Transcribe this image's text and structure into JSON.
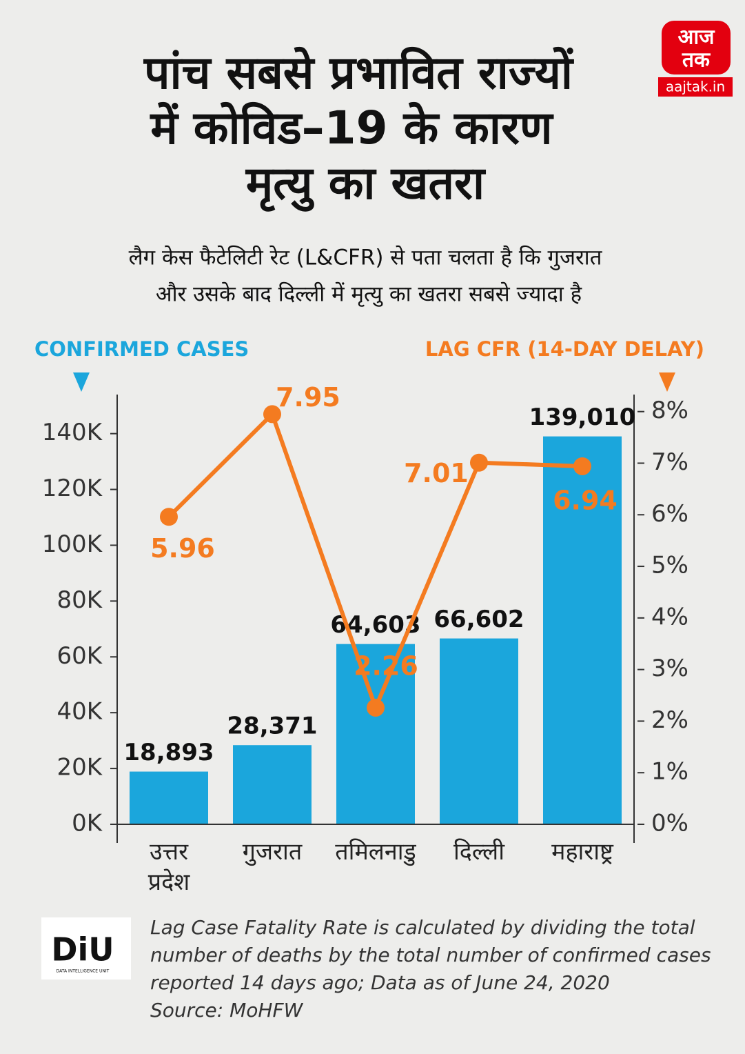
{
  "chart_data": {
    "type": "combo",
    "title": [
      "पांच सबसे प्रभावित राज्यों",
      "में कोविड–19 के कारण",
      "मृत्यु का खतरा"
    ],
    "subtitle": [
      "लैग केस फैटेलिटी रेट (L&CFR) से पता चलता है कि गुजरात",
      "और उसके बाद दिल्ली में मृत्यु का खतरा सबसे ज्यादा है"
    ],
    "ylabel": "CONFIRMED CASES",
    "y2label": "LAG CFR (14-DAY DELAY)",
    "categories": [
      "उत्तर प्रदेश",
      "गुजरात",
      "तमिलनाडु",
      "दिल्ली",
      "महाराष्ट्र"
    ],
    "series": [
      {
        "name": "CONFIRMED CASES",
        "color": "#1ba6dc",
        "values": [
          18893,
          28371,
          64603,
          66602,
          139010
        ],
        "value_labels": [
          "18,893",
          "28,371",
          "64,603",
          "66,602",
          "139,010"
        ]
      },
      {
        "name": "LAG CFR (14-DAY DELAY)",
        "color": "#f47b20",
        "axis": "y2",
        "values": [
          5.96,
          7.95,
          2.26,
          7.01,
          6.94
        ]
      }
    ],
    "ylim": [
      0,
      154000
    ],
    "yticks": [
      {
        "value": 0,
        "label": "0K"
      },
      {
        "value": 20000,
        "label": "20K"
      },
      {
        "value": 40000,
        "label": "40K"
      },
      {
        "value": 60000,
        "label": "60K"
      },
      {
        "value": 80000,
        "label": "80K"
      },
      {
        "value": 100000,
        "label": "100K"
      },
      {
        "value": 120000,
        "label": "120K"
      },
      {
        "value": 140000,
        "label": "140K"
      }
    ],
    "y2lim": [
      0,
      8.33
    ],
    "y2ticks": [
      {
        "value": 0,
        "label": "0%"
      },
      {
        "value": 1,
        "label": "1%"
      },
      {
        "value": 2,
        "label": "2%"
      },
      {
        "value": 3,
        "label": "3%"
      },
      {
        "value": 4,
        "label": "4%"
      },
      {
        "value": 5,
        "label": "5%"
      },
      {
        "value": 6,
        "label": "6%"
      },
      {
        "value": 7,
        "label": "7%"
      },
      {
        "value": 8,
        "label": "8%"
      }
    ],
    "notes": [
      "Lag Case Fatality Rate is calculated by dividing the total",
      "number of deaths by the total number of confirmed cases",
      "reported 14 days ago; Data as of June 24, 2020",
      "Source: MoHFW"
    ]
  },
  "branding": {
    "logo": [
      "आज",
      "तक"
    ],
    "site": "aajtak.in",
    "unit": "DiU",
    "unit_name": "DATA INTELLIGENCE UNIT"
  }
}
